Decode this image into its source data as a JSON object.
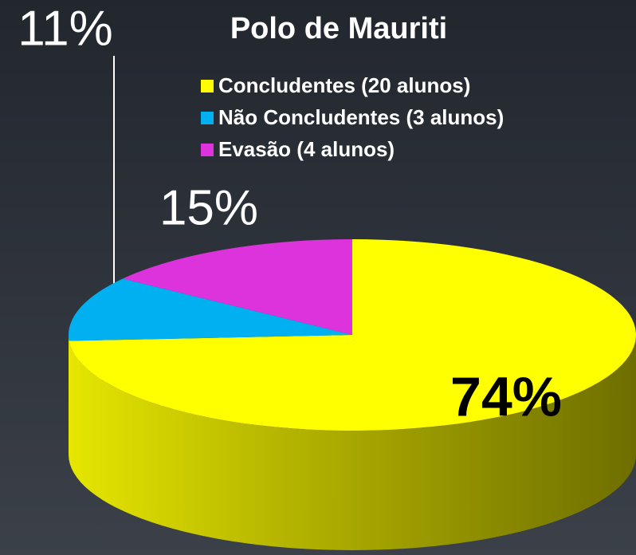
{
  "chart_data": {
    "type": "pie3d",
    "title": "Polo de Mauriti",
    "categories": [
      "Concludentes (20 alunos)",
      "Não Concludentes (3 alunos)",
      "Evasão  (4 alunos)"
    ],
    "values": [
      74,
      11,
      15
    ],
    "value_labels": [
      "74%",
      "11%",
      "15%"
    ],
    "colors": [
      "#ffff00",
      "#00b0f0",
      "#dd33dd"
    ]
  }
}
